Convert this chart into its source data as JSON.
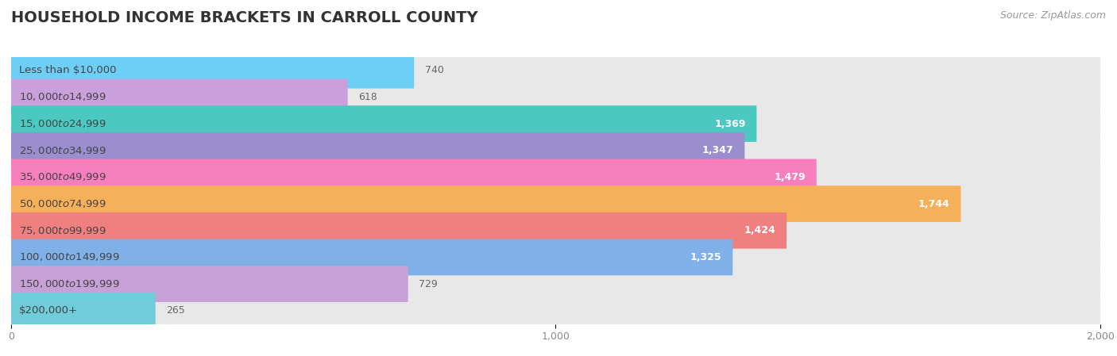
{
  "title": "HOUSEHOLD INCOME BRACKETS IN CARROLL COUNTY",
  "source": "Source: ZipAtlas.com",
  "categories": [
    "Less than $10,000",
    "$10,000 to $14,999",
    "$15,000 to $24,999",
    "$25,000 to $34,999",
    "$35,000 to $49,999",
    "$50,000 to $74,999",
    "$75,000 to $99,999",
    "$100,000 to $149,999",
    "$150,000 to $199,999",
    "$200,000+"
  ],
  "values": [
    740,
    618,
    1369,
    1347,
    1479,
    1744,
    1424,
    1325,
    729,
    265
  ],
  "colors": [
    "#6ecff6",
    "#c9a0dc",
    "#4bc8c0",
    "#9b8ecf",
    "#f77fbe",
    "#f7b05a",
    "#f08080",
    "#80b0e8",
    "#c8a0d8",
    "#70ccd8"
  ],
  "xlim": [
    0,
    2000
  ],
  "xticks": [
    0,
    1000,
    2000
  ],
  "xtick_labels": [
    "0",
    "1,000",
    "2,000"
  ],
  "bar_bg_color": "#e8e8e8",
  "title_color": "#333333",
  "label_color": "#555555",
  "source_color": "#999999",
  "title_fontsize": 14,
  "label_fontsize": 9.5,
  "value_fontsize": 9,
  "source_fontsize": 9
}
